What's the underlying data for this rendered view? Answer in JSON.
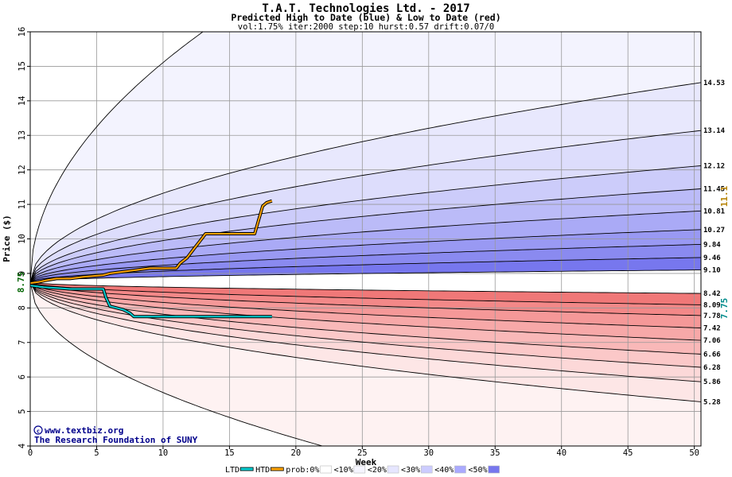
{
  "chart_data": {
    "type": "area",
    "title": "T.A.T. Technologies Ltd. - 2017",
    "subtitle": "Predicted High to Date (blue) &  Low to Date (red)",
    "params": "vol:1.75% iter:2000 step:10 hurst:0.57 drift:0.07/0",
    "xlabel": "Week",
    "ylabel": "Price ($)",
    "xlim": [
      0,
      50.5
    ],
    "ylim": [
      4,
      16
    ],
    "x_ticks": [
      0,
      5,
      10,
      15,
      20,
      25,
      30,
      35,
      40,
      45,
      50
    ],
    "y_ticks": [
      4,
      5,
      6,
      7,
      8,
      9,
      10,
      11,
      12,
      13,
      14,
      15,
      16
    ],
    "grid": true,
    "start_price": 8.75,
    "start_label": "8.75",
    "current_high_label": "11.1",
    "current_low_label": "7.75",
    "high_percentile_curves": {
      "name": "Predicted High to Date",
      "end_values": [
        9.1,
        9.46,
        9.84,
        10.27,
        10.81,
        11.45,
        12.12,
        13.14,
        14.53
      ],
      "end_labels": [
        "9.10",
        "9.46",
        "9.84",
        "10.27",
        "10.81",
        "11.45",
        "12.12",
        "13.14",
        "14.53"
      ]
    },
    "low_percentile_curves": {
      "name": "Predicted Low to Date",
      "end_values": [
        8.42,
        8.09,
        7.78,
        7.42,
        7.06,
        6.66,
        6.28,
        5.86,
        5.28
      ],
      "end_labels": [
        "8.42",
        "8.09",
        "7.78",
        "7.42",
        "7.06",
        "6.66",
        "6.28",
        "5.86",
        "5.28"
      ]
    },
    "envelope": {
      "upper_week_13": 16.0,
      "lower_week_22": 4.0
    },
    "series": [
      {
        "name": "HTD",
        "color": "#ffa500",
        "points": [
          [
            0,
            8.72
          ],
          [
            0.6,
            8.75
          ],
          [
            1.2,
            8.8
          ],
          [
            2.0,
            8.85
          ],
          [
            3.0,
            8.85
          ],
          [
            4.0,
            8.9
          ],
          [
            5.5,
            8.95
          ],
          [
            6.0,
            9.0
          ],
          [
            7.0,
            9.05
          ],
          [
            8.0,
            9.1
          ],
          [
            9.0,
            9.15
          ],
          [
            10.5,
            9.15
          ],
          [
            11.0,
            9.15
          ],
          [
            11.3,
            9.3
          ],
          [
            11.8,
            9.45
          ],
          [
            12.3,
            9.7
          ],
          [
            12.8,
            9.95
          ],
          [
            13.2,
            10.15
          ],
          [
            14.0,
            10.15
          ],
          [
            15.0,
            10.15
          ],
          [
            16.0,
            10.15
          ],
          [
            16.9,
            10.15
          ],
          [
            17.2,
            10.55
          ],
          [
            17.5,
            10.95
          ],
          [
            17.8,
            11.05
          ],
          [
            18.2,
            11.1
          ]
        ]
      },
      {
        "name": "LTD",
        "color": "#00ced1",
        "points": [
          [
            0,
            8.65
          ],
          [
            1.0,
            8.6
          ],
          [
            2.0,
            8.58
          ],
          [
            3.0,
            8.55
          ],
          [
            4.0,
            8.55
          ],
          [
            5.5,
            8.55
          ],
          [
            5.7,
            8.3
          ],
          [
            6.0,
            8.05
          ],
          [
            6.5,
            8.0
          ],
          [
            7.0,
            7.95
          ],
          [
            7.5,
            7.85
          ],
          [
            7.8,
            7.75
          ],
          [
            9.0,
            7.75
          ],
          [
            12.0,
            7.75
          ],
          [
            15.0,
            7.75
          ],
          [
            18.2,
            7.75
          ]
        ]
      }
    ],
    "legend": {
      "placement": "bottom",
      "items": [
        {
          "label": "LTD",
          "color": "#00ced1",
          "kind": "line"
        },
        {
          "label": "HTD",
          "color": "#ffa500",
          "kind": "line"
        },
        {
          "label": "prob:0%",
          "color": "#ffffff",
          "kind": "swatch"
        },
        {
          "label": "<10%",
          "color": "#f5f5ff",
          "kind": "swatch"
        },
        {
          "label": "<20%",
          "color": "#e6e6ff",
          "kind": "swatch"
        },
        {
          "label": "<30%",
          "color": "#ccccff",
          "kind": "swatch"
        },
        {
          "label": "<40%",
          "color": "#aaaaff",
          "kind": "swatch"
        },
        {
          "label": "<50%",
          "color": "#7777ee",
          "kind": "swatch"
        }
      ]
    },
    "credit_lines": [
      "www.textbiz.org",
      "The Research Foundation of SUNY"
    ]
  }
}
